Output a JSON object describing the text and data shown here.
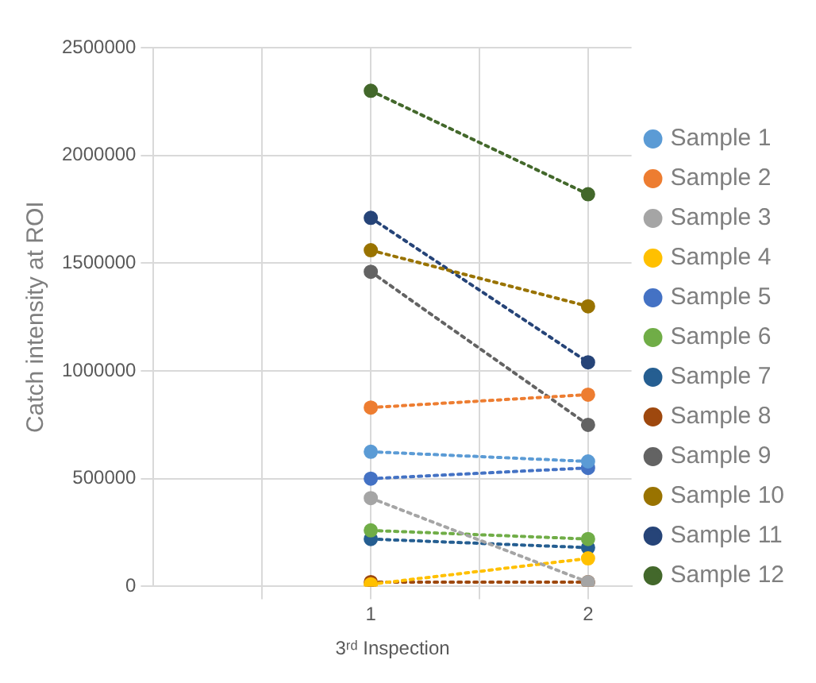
{
  "chart_data": {
    "type": "line",
    "xlabel": "3ʳᵈ Inspection",
    "ylabel": "Catch intensity at ROI",
    "x": [
      1,
      2
    ],
    "xlim": [
      0,
      2.2
    ],
    "xticks": [
      {
        "value": 0.5,
        "label": null
      },
      1,
      {
        "value": 1.5,
        "label": null
      },
      2
    ],
    "ylim": [
      0,
      2500000
    ],
    "yticks": [
      0,
      500000,
      1000000,
      1500000,
      2000000,
      2500000
    ],
    "grid": true,
    "legend": "right",
    "marker": "circle",
    "line_style": "dotted",
    "series": [
      {
        "name": "Sample 1",
        "color": "#5b9bd5",
        "values": [
          625000,
          580000
        ]
      },
      {
        "name": "Sample 2",
        "color": "#ed7d31",
        "values": [
          830000,
          890000
        ]
      },
      {
        "name": "Sample 3",
        "color": "#a5a5a5",
        "values": [
          410000,
          20000
        ]
      },
      {
        "name": "Sample 4",
        "color": "#ffc000",
        "values": [
          10000,
          130000
        ]
      },
      {
        "name": "Sample 5",
        "color": "#4472c4",
        "values": [
          500000,
          550000
        ]
      },
      {
        "name": "Sample 6",
        "color": "#70ad47",
        "values": [
          260000,
          220000
        ]
      },
      {
        "name": "Sample 7",
        "color": "#255e91",
        "values": [
          220000,
          180000
        ]
      },
      {
        "name": "Sample 8",
        "color": "#9e480e",
        "values": [
          20000,
          20000
        ]
      },
      {
        "name": "Sample 9",
        "color": "#636363",
        "values": [
          1460000,
          750000
        ]
      },
      {
        "name": "Sample 10",
        "color": "#997300",
        "values": [
          1560000,
          1300000
        ]
      },
      {
        "name": "Sample 11",
        "color": "#264478",
        "values": [
          1710000,
          1040000
        ]
      },
      {
        "name": "Sample 12",
        "color": "#43682b",
        "values": [
          2300000,
          1820000
        ]
      }
    ]
  }
}
